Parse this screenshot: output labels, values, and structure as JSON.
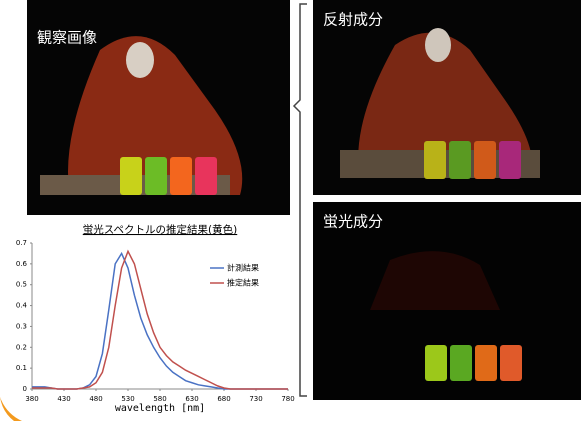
{
  "panels": [
    {
      "label": "観察画像"
    },
    {
      "label": "反射成分"
    },
    {
      "label": "蛍光成分"
    }
  ],
  "chart_data": {
    "type": "line",
    "title": "蛍光スペクトルの推定結果(黄色)",
    "x_label": "wavelength [nm]",
    "x": [
      380,
      390,
      400,
      410,
      420,
      430,
      440,
      450,
      460,
      470,
      480,
      490,
      500,
      510,
      520,
      530,
      540,
      550,
      560,
      570,
      580,
      590,
      600,
      610,
      620,
      630,
      640,
      650,
      660,
      670,
      680,
      690,
      700,
      710,
      720,
      730,
      740,
      750,
      760,
      770,
      780
    ],
    "series": [
      {
        "name": "計測結果",
        "color": "#4a72c4",
        "values": [
          0.01,
          0.01,
          0.01,
          0.005,
          0,
          0,
          0,
          0,
          0.005,
          0.02,
          0.06,
          0.17,
          0.38,
          0.6,
          0.65,
          0.58,
          0.45,
          0.34,
          0.26,
          0.2,
          0.15,
          0.11,
          0.08,
          0.06,
          0.04,
          0.03,
          0.02,
          0.015,
          0.01,
          0.005,
          0,
          0,
          0,
          0,
          0,
          0,
          0,
          0,
          0,
          0,
          0
        ]
      },
      {
        "name": "推定結果",
        "color": "#c0504d",
        "values": [
          0.005,
          0.005,
          0.005,
          0.005,
          0,
          0,
          0,
          0,
          0.005,
          0.01,
          0.03,
          0.08,
          0.2,
          0.4,
          0.58,
          0.66,
          0.6,
          0.48,
          0.36,
          0.27,
          0.2,
          0.16,
          0.13,
          0.11,
          0.09,
          0.075,
          0.06,
          0.045,
          0.03,
          0.015,
          0.005,
          0,
          0,
          0,
          0,
          0,
          0,
          0,
          0,
          0,
          0
        ]
      }
    ],
    "xlim": [
      380,
      780
    ],
    "xticks": [
      380,
      430,
      480,
      530,
      580,
      630,
      680,
      730,
      780
    ],
    "ylim": [
      0,
      0.7
    ],
    "yticks": [
      0,
      0.1,
      0.2,
      0.3,
      0.4,
      0.5,
      0.6,
      0.7
    ],
    "legend": "upper-right"
  }
}
